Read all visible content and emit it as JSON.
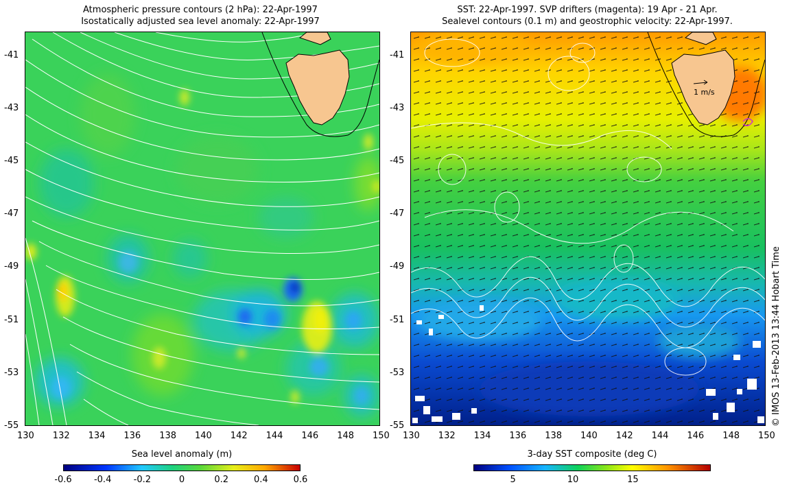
{
  "left_panel": {
    "title_line1": "Atmospheric pressure contours (2 hPa): 22-Apr-1997",
    "title_line2": "Isostatically adjusted sea level anomaly: 22-Apr-1997",
    "colorbar_label": "Sea level anomaly (m)",
    "colorbar_ticks": [
      "-0.6",
      "-0.4",
      "-0.2",
      "0",
      "0.2",
      "0.4",
      "0.6"
    ]
  },
  "right_panel": {
    "title_line1": "SST: 22-Apr-1997. SVP drifters (magenta): 19 Apr - 21 Apr.",
    "title_line2": "Sealevel contours (0.1 m) and geostrophic velocity: 22-Apr-1997.",
    "colorbar_label": "3-day SST composite (deg C)",
    "colorbar_ticks": [
      "5",
      "10",
      "15"
    ],
    "scale_arrow_label": "1 m/s"
  },
  "axes": {
    "lat_ticks": [
      "-41",
      "-43",
      "-45",
      "-47",
      "-49",
      "-51",
      "-53",
      "-55"
    ],
    "lon_ticks": [
      "130",
      "132",
      "134",
      "136",
      "138",
      "140",
      "142",
      "144",
      "146",
      "148",
      "150"
    ],
    "lat_range": [
      -55,
      -40.1
    ],
    "lon_range": [
      130,
      150
    ]
  },
  "credit": "© IMOS 13-Feb-2013 13:44 Hobart Time",
  "colors": {
    "land": "#f7c690",
    "contour": "#ffffff",
    "sla_colormap": [
      "#00007f",
      "#0036ff",
      "#22c8ff",
      "#1ed27f",
      "#5ad83a",
      "#e6ee1a",
      "#ffa800",
      "#c80000"
    ],
    "sst_colormap": [
      "#00007f",
      "#0050ff",
      "#17b4ff",
      "#0fd25a",
      "#8ae61a",
      "#ffff00",
      "#ff9400",
      "#b40000"
    ]
  }
}
